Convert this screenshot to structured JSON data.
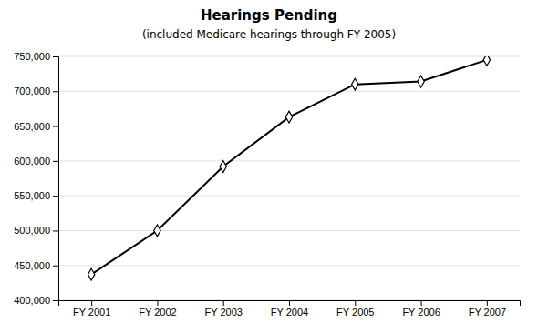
{
  "chart_data": {
    "type": "line",
    "title": "Hearings Pending",
    "subtitle": "(included Medicare hearings through FY 2005)",
    "categories": [
      "FY 2001",
      "FY 2002",
      "FY 2003",
      "FY 2004",
      "FY 2005",
      "FY 2006",
      "FY 2007"
    ],
    "values": [
      437000,
      500000,
      592000,
      663000,
      710000,
      714000,
      745000
    ],
    "color": "#000000",
    "marker": "diamond",
    "ylim": [
      400000,
      750000
    ],
    "yticks": [
      {
        "value": 400000,
        "label": "400,000"
      },
      {
        "value": 450000,
        "label": "450,000"
      },
      {
        "value": 500000,
        "label": "500,000"
      },
      {
        "value": 550000,
        "label": "550,000"
      },
      {
        "value": 600000,
        "label": "600,000"
      },
      {
        "value": 650000,
        "label": "650,000"
      },
      {
        "value": 700000,
        "label": "700,000"
      },
      {
        "value": 750000,
        "label": "750,000"
      }
    ],
    "grid": true
  }
}
